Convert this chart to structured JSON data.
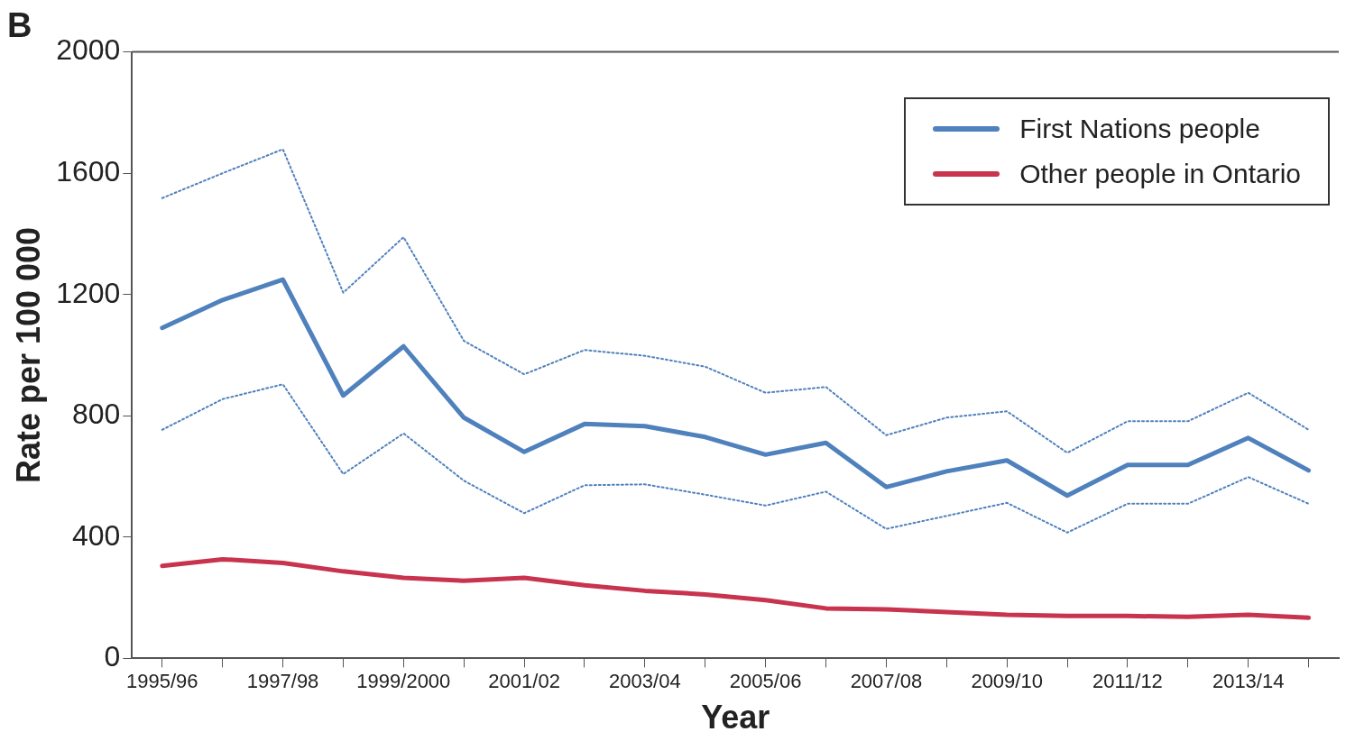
{
  "chart_data": {
    "type": "line",
    "title": "B",
    "xlabel": "Year",
    "ylabel": "Rate per 100 000",
    "categories": [
      "1995/96",
      null,
      "1997/98",
      null,
      "1999/2000",
      null,
      "2001/02",
      null,
      "2003/04",
      null,
      "2005/06",
      null,
      "2007/08",
      null,
      "2009/10",
      null,
      "2011/12",
      null,
      "2013/14",
      null
    ],
    "series": [
      {
        "name": "First Nations people",
        "color": "#4f81bd",
        "values": [
          1090,
          1182,
          1249,
          867,
          1029,
          794,
          681,
          773,
          766,
          730,
          672,
          711,
          565,
          617,
          653,
          537,
          638,
          638,
          727,
          620
        ]
      },
      {
        "color": "#4f81bd",
        "line_style": "dotted",
        "values": [
          754,
          855,
          904,
          608,
          742,
          586,
          479,
          571,
          574,
          540,
          504,
          550,
          427,
          470,
          513,
          415,
          510,
          510,
          598,
          510
        ]
      },
      {
        "color": "#4f81bd",
        "line_style": "dotted",
        "values": [
          1518,
          1600,
          1679,
          1206,
          1389,
          1047,
          937,
          1017,
          998,
          962,
          876,
          895,
          736,
          794,
          815,
          678,
          782,
          782,
          876,
          754
        ]
      },
      {
        "name": "Other people in Ontario",
        "color": "#c8334e",
        "values": [
          305,
          327,
          315,
          287,
          266,
          256,
          266,
          241,
          223,
          211,
          192,
          165,
          162,
          153,
          144,
          140,
          140,
          137,
          144,
          134
        ]
      }
    ],
    "ylim": [
      0,
      2000
    ],
    "yticks": [
      0,
      400,
      800,
      1200,
      1600,
      2000
    ],
    "grid": false,
    "legend": "top right",
    "line_style": "solid",
    "marker": "none"
  }
}
